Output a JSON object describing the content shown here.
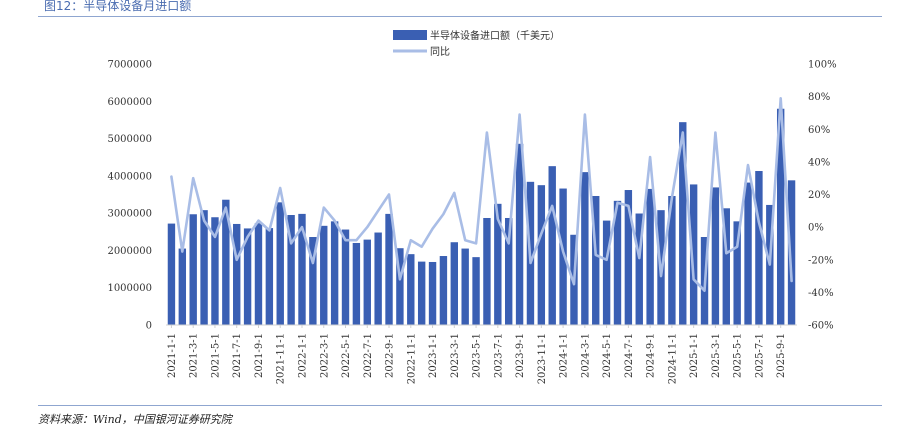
{
  "figure": {
    "title": "图12：半导体设备月进口额",
    "source": "资料来源：Wind，中国银河证券研究院"
  },
  "colors": {
    "bar": "#3a5fb3",
    "line": "#a9bde6",
    "title": "#4a6cb0",
    "rule": "#8fa6d0",
    "text": "#333333"
  },
  "chart_data": {
    "type": "bar",
    "title": "",
    "xlabel": "",
    "ylabel": "",
    "legend_position": "top",
    "grid": false,
    "ylim": [
      0,
      7000000
    ],
    "y2lim": [
      -60,
      100
    ],
    "y_ticks": [
      "0",
      "1000000",
      "2000000",
      "3000000",
      "4000000",
      "5000000",
      "6000000",
      "7000000"
    ],
    "y2_ticks": [
      "-60%",
      "-40%",
      "-20%",
      "0%",
      "20%",
      "40%",
      "60%",
      "80%",
      "100%"
    ],
    "x_tick_labels": [
      "2021-1-1",
      "2021-3-1",
      "2021-5-1",
      "2021-7-1",
      "2021-9-1",
      "2021-11-1",
      "2022-1-1",
      "2022-3-1",
      "2022-5-1",
      "2022-7-1",
      "2022-9-1",
      "2022-11-1",
      "2023-1-1",
      "2023-3-1",
      "2023-5-1",
      "2023-7-1",
      "2023-9-1",
      "2023-11-1",
      "2024-1-1",
      "2024-3-1",
      "2024-5-1",
      "2024-7-1",
      "2024-9-1",
      "2024-11-1",
      "2025-1-1",
      "2025-3-1",
      "2025-5-1",
      "2025-7-1",
      "2025-9-1"
    ],
    "categories": [
      "2021-1",
      "2021-2",
      "2021-3",
      "2021-4",
      "2021-5",
      "2021-6",
      "2021-7",
      "2021-8",
      "2021-9",
      "2021-10",
      "2021-11",
      "2021-12",
      "2022-1",
      "2022-2",
      "2022-3",
      "2022-4",
      "2022-5",
      "2022-6",
      "2022-7",
      "2022-8",
      "2022-9",
      "2022-10",
      "2022-11",
      "2022-12",
      "2023-1",
      "2023-2",
      "2023-3",
      "2023-4",
      "2023-5",
      "2023-6",
      "2023-7",
      "2023-8",
      "2023-9",
      "2023-10",
      "2023-11",
      "2023-12",
      "2024-1",
      "2024-2",
      "2024-3",
      "2024-4",
      "2024-5",
      "2024-6",
      "2024-7",
      "2024-8",
      "2024-9",
      "2024-10",
      "2024-11",
      "2024-12",
      "2025-1",
      "2025-2",
      "2025-3",
      "2025-4",
      "2025-5",
      "2025-6",
      "2025-7",
      "2025-8",
      "2025-9",
      "2025-10"
    ],
    "series": [
      {
        "name": "半导体设备进口额（千美元）",
        "type": "bar",
        "axis": "left",
        "values": [
          2720000,
          2050000,
          2970000,
          3080000,
          2890000,
          3360000,
          2710000,
          2590000,
          2730000,
          2600000,
          3290000,
          2950000,
          2980000,
          2360000,
          2660000,
          2780000,
          2560000,
          2200000,
          2290000,
          2480000,
          2980000,
          2060000,
          1900000,
          1700000,
          1690000,
          1850000,
          2220000,
          2050000,
          1820000,
          2870000,
          3250000,
          2870000,
          4860000,
          3840000,
          3750000,
          4260000,
          3660000,
          2420000,
          4100000,
          3460000,
          2800000,
          3330000,
          3620000,
          2990000,
          3650000,
          3080000,
          3460000,
          5440000,
          3770000,
          2360000,
          3690000,
          3130000,
          2780000,
          3820000,
          4130000,
          3220000,
          5800000,
          3880000
        ]
      },
      {
        "name": "同比",
        "type": "line",
        "axis": "right",
        "values": [
          31,
          -15,
          30,
          4,
          -6,
          12,
          -20,
          -6,
          4,
          -2,
          24,
          -10,
          0,
          -22,
          12,
          4,
          -8,
          -8,
          0,
          10,
          20,
          -32,
          -8,
          -12,
          -1,
          8,
          21,
          -8,
          -10,
          58,
          5,
          -10,
          69,
          -22,
          -4,
          13,
          -15,
          -35,
          69,
          -17,
          -20,
          15,
          13,
          -19,
          43,
          -30,
          18,
          58,
          -32,
          -39,
          58,
          -16,
          -12,
          38,
          3,
          -23,
          79,
          -33
        ]
      }
    ]
  }
}
